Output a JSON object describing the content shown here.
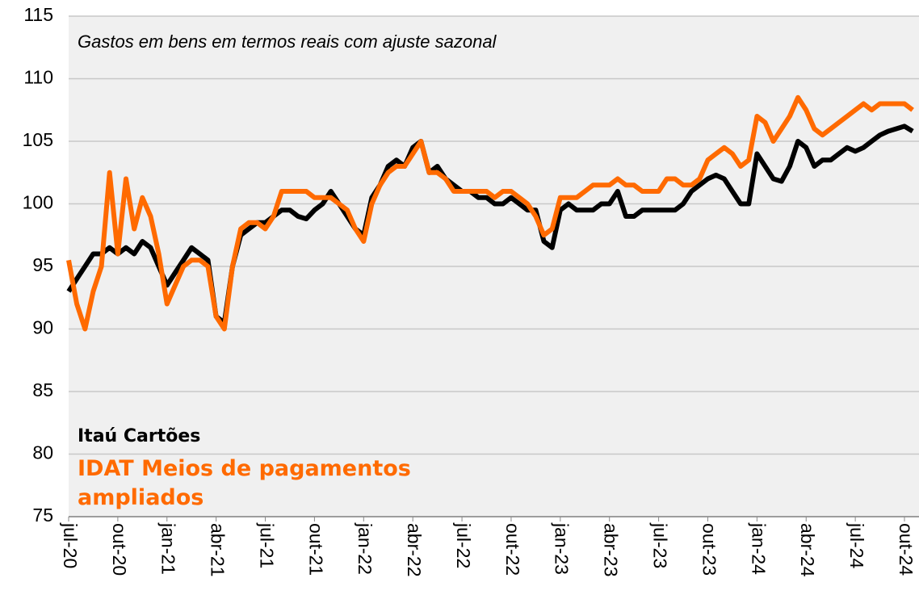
{
  "chart_data": {
    "type": "line",
    "title": "Gastos em bens em termos reais com ajuste sazonal",
    "categories": [
      "jul-20",
      null,
      null,
      null,
      null,
      null,
      "out-20",
      null,
      null,
      null,
      null,
      null,
      "jan-21",
      null,
      null,
      null,
      null,
      null,
      "abr-21",
      null,
      null,
      null,
      null,
      null,
      "jul-21",
      null,
      null,
      null,
      null,
      null,
      "out-21",
      null,
      null,
      null,
      null,
      null,
      "jan-22",
      null,
      null,
      null,
      null,
      null,
      "abr-22",
      null,
      null,
      null,
      null,
      null,
      "jul-22",
      null,
      null,
      null,
      null,
      null,
      "out-22",
      null,
      null,
      null,
      null,
      null,
      "jan-23",
      null,
      null,
      null,
      null,
      null,
      "abr-23",
      null,
      null,
      null,
      null,
      null,
      "jul-23",
      null,
      null,
      null,
      null,
      null,
      "out-23",
      null,
      null,
      null,
      null,
      null,
      "jan-24",
      null,
      null,
      null,
      null,
      null,
      "abr-24",
      null,
      null,
      null,
      null,
      null,
      "jul-24",
      null,
      null,
      null,
      null,
      null,
      "out-24",
      null
    ],
    "series": [
      {
        "name": "Itaú Cartões",
        "color": "#000000",
        "values": [
          93,
          94,
          95,
          96,
          96,
          96.5,
          96,
          96.5,
          96,
          97,
          96.5,
          95,
          93.5,
          94.5,
          95.5,
          96.5,
          96,
          95.5,
          91,
          90.5,
          95,
          97.5,
          98,
          98.5,
          98.5,
          99,
          99.5,
          99.5,
          99,
          98.8,
          99.5,
          100,
          101,
          100,
          99,
          98,
          97.5,
          100.5,
          101.5,
          103,
          103.5,
          103,
          104.5,
          105,
          102.5,
          103,
          102,
          101.5,
          101,
          101,
          100.5,
          100.5,
          100,
          100,
          100.5,
          100,
          99.5,
          99.5,
          97,
          96.5,
          99.5,
          100,
          99.5,
          99.5,
          99.5,
          100,
          100,
          101,
          99,
          99,
          99.5,
          99.5,
          99.5,
          99.5,
          99.5,
          100,
          101,
          101.5,
          102,
          102.3,
          102,
          101,
          100,
          100,
          104,
          103,
          102,
          101.8,
          103,
          105,
          104.5,
          103,
          103.5,
          103.5,
          104,
          104.5,
          104.2,
          104.5,
          105,
          105.5,
          105.8,
          106,
          106.2,
          105.8
        ]
      },
      {
        "name": "IDAT Meios de pagamentos ampliados",
        "color": "#ff6a00",
        "values": [
          95.5,
          92,
          90,
          93,
          95,
          102.5,
          96,
          102,
          98,
          100.5,
          99,
          96,
          92,
          93.5,
          95,
          95.5,
          95.5,
          95,
          91,
          90,
          95,
          98,
          98.5,
          98.5,
          98,
          99,
          101,
          101,
          101,
          101,
          100.5,
          100.5,
          100.5,
          100,
          99.5,
          98,
          97,
          100,
          101.5,
          102.5,
          103,
          103,
          104,
          105,
          102.5,
          102.5,
          102,
          101,
          101,
          101,
          101,
          101,
          100.5,
          101,
          101,
          100.5,
          100,
          99,
          97.5,
          98,
          100.5,
          100.5,
          100.5,
          101,
          101.5,
          101.5,
          101.5,
          102,
          101.5,
          101.5,
          101,
          101,
          101,
          102,
          102,
          101.5,
          101.5,
          102,
          103.5,
          104,
          104.5,
          104,
          103,
          103.5,
          107,
          106.5,
          105,
          106,
          107,
          108.5,
          107.5,
          106,
          105.5,
          106,
          106.5,
          107,
          107.5,
          108,
          107.5,
          108,
          108,
          108,
          108,
          107.5
        ]
      }
    ],
    "ylim": [
      75,
      115
    ],
    "yticks": [
      75,
      80,
      85,
      90,
      95,
      100,
      105,
      110,
      115
    ],
    "grid": true
  }
}
